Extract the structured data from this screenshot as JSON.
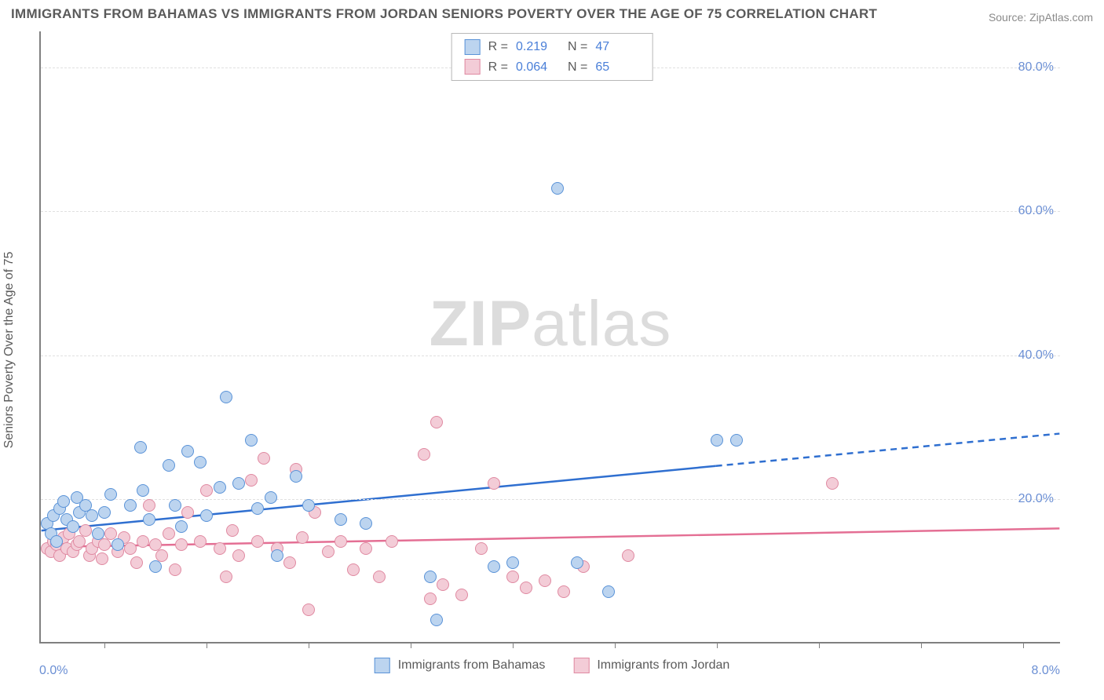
{
  "title": "IMMIGRANTS FROM BAHAMAS VS IMMIGRANTS FROM JORDAN SENIORS POVERTY OVER THE AGE OF 75 CORRELATION CHART",
  "source_label": "Source:",
  "source_value": "ZipAtlas.com",
  "watermark_zip": "ZIP",
  "watermark_atlas": "atlas",
  "chart": {
    "type": "scatter",
    "background_color": "#ffffff",
    "grid_color": "#e0e0e0",
    "axis_color": "#808080",
    "label_color": "#5a5a5a",
    "tick_label_color": "#6b8fd4",
    "label_fontsize": 16,
    "title_fontsize": 17,
    "title_color": "#5a5a5a",
    "xlim": [
      0.0,
      8.0
    ],
    "ylim": [
      0.0,
      85.0
    ],
    "xtick_positions": [
      0.5,
      1.3,
      2.1,
      2.9,
      3.7,
      4.5,
      5.3,
      6.1,
      6.9,
      7.7
    ],
    "ytick_positions": [
      20.0,
      40.0,
      60.0,
      80.0
    ],
    "ytick_labels": [
      "20.0%",
      "40.0%",
      "60.0%",
      "80.0%"
    ],
    "xlim_left_label": "0.0%",
    "xlim_right_label": "8.0%",
    "yaxis_label": "Seniors Poverty Over the Age of 75",
    "marker_radius": 8,
    "marker_border_width": 1.5,
    "trend_line_width": 2.5,
    "series": [
      {
        "name": "Immigrants from Bahamas",
        "fill_color": "#bcd4ef",
        "border_color": "#5a93d8",
        "line_color": "#2f6fd0",
        "r_value": "0.219",
        "n_value": "47",
        "trend": {
          "x1": 0.0,
          "y1": 15.5,
          "x2": 5.3,
          "y2": 24.5,
          "x2_ext": 8.0,
          "y2_ext": 29.0
        },
        "points": [
          [
            0.05,
            16.5
          ],
          [
            0.08,
            15.0
          ],
          [
            0.1,
            17.5
          ],
          [
            0.12,
            14.0
          ],
          [
            0.15,
            18.5
          ],
          [
            0.18,
            19.5
          ],
          [
            0.2,
            17.0
          ],
          [
            0.25,
            16.0
          ],
          [
            0.28,
            20.0
          ],
          [
            0.3,
            18.0
          ],
          [
            0.35,
            19.0
          ],
          [
            0.4,
            17.5
          ],
          [
            0.45,
            15.0
          ],
          [
            0.5,
            18.0
          ],
          [
            0.55,
            20.5
          ],
          [
            0.6,
            13.5
          ],
          [
            0.7,
            19.0
          ],
          [
            0.78,
            27.0
          ],
          [
            0.8,
            21.0
          ],
          [
            0.85,
            17.0
          ],
          [
            0.9,
            10.5
          ],
          [
            1.0,
            24.5
          ],
          [
            1.05,
            19.0
          ],
          [
            1.1,
            16.0
          ],
          [
            1.15,
            26.5
          ],
          [
            1.25,
            25.0
          ],
          [
            1.3,
            17.5
          ],
          [
            1.4,
            21.5
          ],
          [
            1.45,
            34.0
          ],
          [
            1.55,
            22.0
          ],
          [
            1.65,
            28.0
          ],
          [
            1.7,
            18.5
          ],
          [
            1.8,
            20.0
          ],
          [
            1.85,
            12.0
          ],
          [
            2.0,
            23.0
          ],
          [
            2.1,
            19.0
          ],
          [
            2.35,
            17.0
          ],
          [
            2.55,
            16.5
          ],
          [
            3.05,
            9.0
          ],
          [
            3.1,
            3.0
          ],
          [
            3.55,
            10.5
          ],
          [
            3.7,
            11.0
          ],
          [
            4.05,
            63.0
          ],
          [
            4.2,
            11.0
          ],
          [
            4.45,
            7.0
          ],
          [
            5.3,
            28.0
          ],
          [
            5.45,
            28.0
          ]
        ]
      },
      {
        "name": "Immigrants from Jordan",
        "fill_color": "#f3ccd7",
        "border_color": "#e08aa2",
        "line_color": "#e46f94",
        "r_value": "0.064",
        "n_value": "65",
        "trend": {
          "x1": 0.0,
          "y1": 13.2,
          "x2": 8.0,
          "y2": 15.8,
          "x2_ext": 8.0,
          "y2_ext": 15.8
        },
        "points": [
          [
            0.05,
            13.0
          ],
          [
            0.08,
            12.5
          ],
          [
            0.1,
            14.0
          ],
          [
            0.12,
            13.5
          ],
          [
            0.15,
            12.0
          ],
          [
            0.18,
            14.5
          ],
          [
            0.2,
            13.0
          ],
          [
            0.22,
            15.0
          ],
          [
            0.25,
            12.5
          ],
          [
            0.28,
            13.5
          ],
          [
            0.3,
            14.0
          ],
          [
            0.35,
            15.5
          ],
          [
            0.38,
            12.0
          ],
          [
            0.4,
            13.0
          ],
          [
            0.45,
            14.0
          ],
          [
            0.48,
            11.5
          ],
          [
            0.5,
            13.5
          ],
          [
            0.55,
            15.0
          ],
          [
            0.6,
            12.5
          ],
          [
            0.65,
            14.5
          ],
          [
            0.7,
            13.0
          ],
          [
            0.75,
            11.0
          ],
          [
            0.8,
            14.0
          ],
          [
            0.85,
            19.0
          ],
          [
            0.9,
            13.5
          ],
          [
            0.95,
            12.0
          ],
          [
            1.0,
            15.0
          ],
          [
            1.05,
            10.0
          ],
          [
            1.1,
            13.5
          ],
          [
            1.15,
            18.0
          ],
          [
            1.25,
            14.0
          ],
          [
            1.3,
            21.0
          ],
          [
            1.4,
            13.0
          ],
          [
            1.45,
            9.0
          ],
          [
            1.5,
            15.5
          ],
          [
            1.55,
            12.0
          ],
          [
            1.65,
            22.5
          ],
          [
            1.7,
            14.0
          ],
          [
            1.75,
            25.5
          ],
          [
            1.85,
            13.0
          ],
          [
            1.95,
            11.0
          ],
          [
            2.0,
            24.0
          ],
          [
            2.05,
            14.5
          ],
          [
            2.1,
            4.5
          ],
          [
            2.15,
            18.0
          ],
          [
            2.25,
            12.5
          ],
          [
            2.35,
            14.0
          ],
          [
            2.45,
            10.0
          ],
          [
            2.55,
            13.0
          ],
          [
            2.65,
            9.0
          ],
          [
            2.75,
            14.0
          ],
          [
            3.0,
            26.0
          ],
          [
            3.05,
            6.0
          ],
          [
            3.1,
            30.5
          ],
          [
            3.15,
            8.0
          ],
          [
            3.3,
            6.5
          ],
          [
            3.45,
            13.0
          ],
          [
            3.55,
            22.0
          ],
          [
            3.7,
            9.0
          ],
          [
            3.8,
            7.5
          ],
          [
            3.95,
            8.5
          ],
          [
            4.1,
            7.0
          ],
          [
            4.25,
            10.5
          ],
          [
            4.6,
            12.0
          ],
          [
            6.2,
            22.0
          ]
        ]
      }
    ],
    "stats_legend": {
      "r_label": "R  =",
      "n_label": "N  ="
    },
    "bottom_legend_fontsize": 16
  }
}
